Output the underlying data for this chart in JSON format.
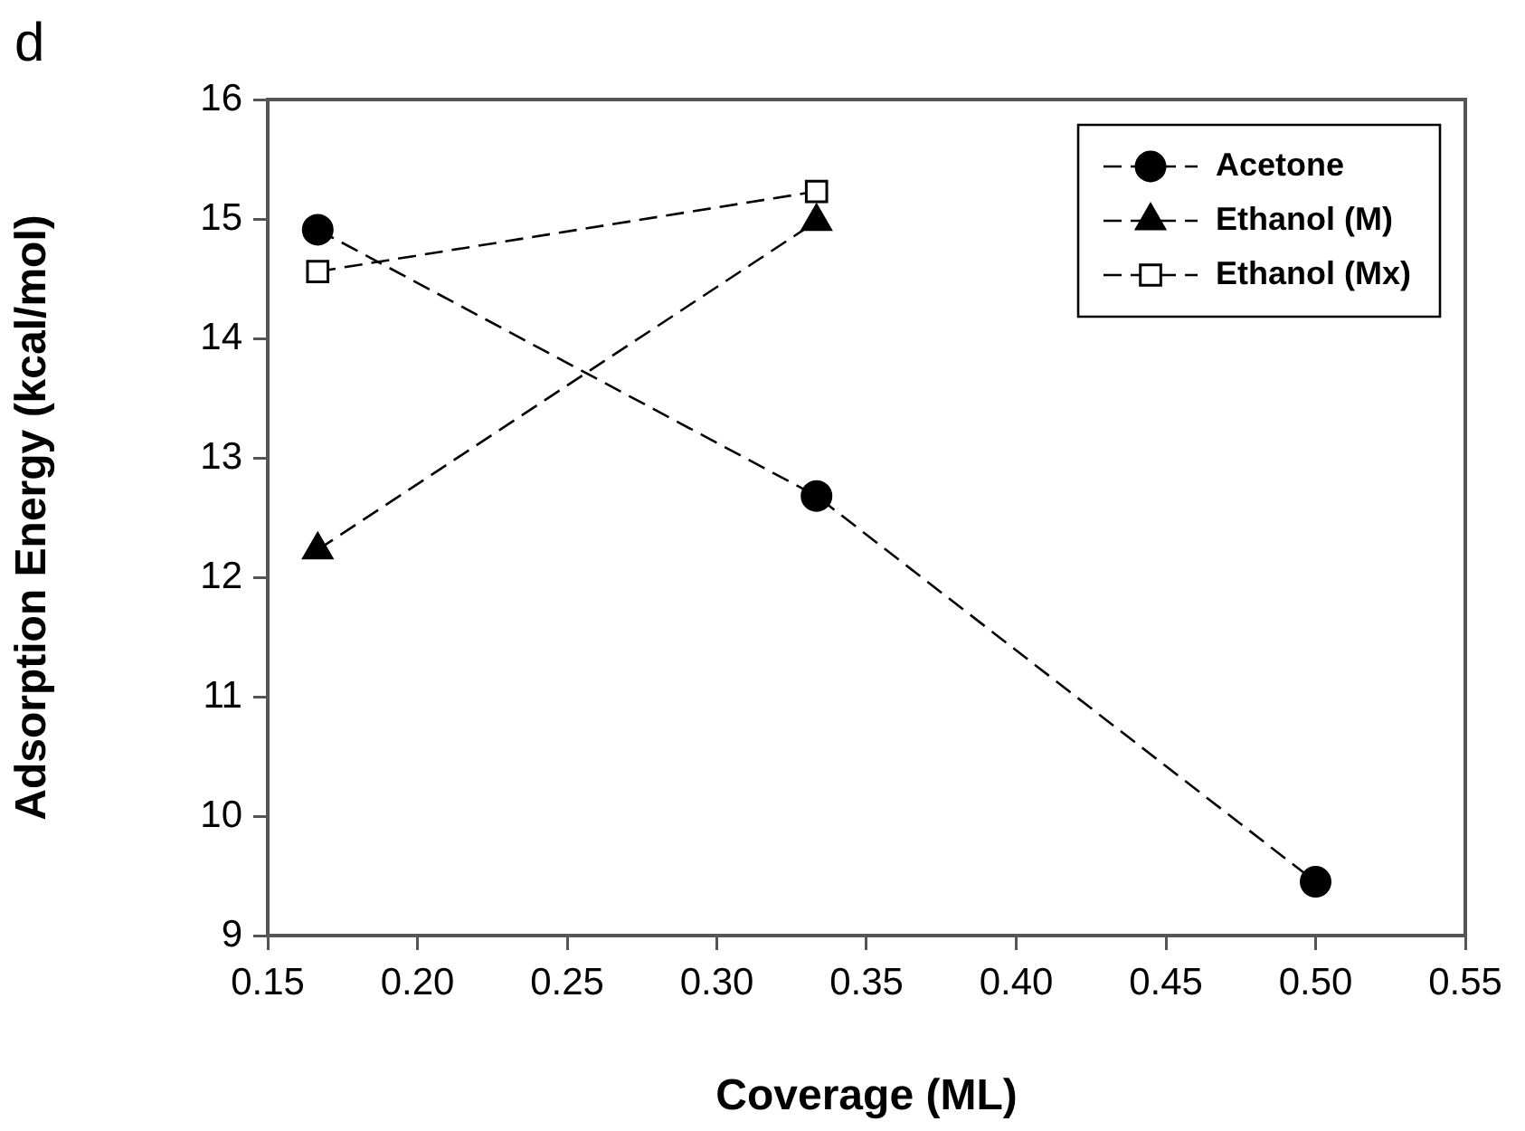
{
  "chart_data": {
    "type": "line",
    "xlabel": "Coverage (ML)",
    "ylabel": "Adsorption Energy (kcal/mol)",
    "annotations": [
      "d"
    ],
    "xlim": [
      0.15,
      0.55
    ],
    "xticks": [
      {
        "value": 0.15,
        "label": "0.15"
      },
      {
        "value": 0.2,
        "label": "0.20"
      },
      {
        "value": 0.25,
        "label": "0.25"
      },
      {
        "value": 0.3,
        "label": "0.30"
      },
      {
        "value": 0.35,
        "label": "0.35"
      },
      {
        "value": 0.4,
        "label": "0.40"
      },
      {
        "value": 0.45,
        "label": "0.45"
      },
      {
        "value": 0.5,
        "label": "0.50"
      },
      {
        "value": 0.55,
        "label": "0.55"
      }
    ],
    "ylim": [
      9,
      16
    ],
    "yticks": [
      9,
      10,
      11,
      12,
      13,
      14,
      15,
      16
    ],
    "grid": false,
    "legend": "top right",
    "line_style": "dashed",
    "series": [
      {
        "name": "Acetone",
        "color": "#000000",
        "marker": "circle",
        "x": [
          0.1667,
          0.3333,
          0.5
        ],
        "values": [
          14.91,
          12.68,
          9.45
        ]
      },
      {
        "name": "Ethanol (M)",
        "color": "#000000",
        "marker": "triangle",
        "x": [
          0.1667,
          0.3333
        ],
        "values": [
          12.23,
          14.98
        ]
      },
      {
        "name": "Ethanol (Mx)",
        "color": "#000000",
        "marker": "square",
        "x": [
          0.1667,
          0.3333
        ],
        "values": [
          14.56,
          15.23
        ]
      }
    ]
  }
}
